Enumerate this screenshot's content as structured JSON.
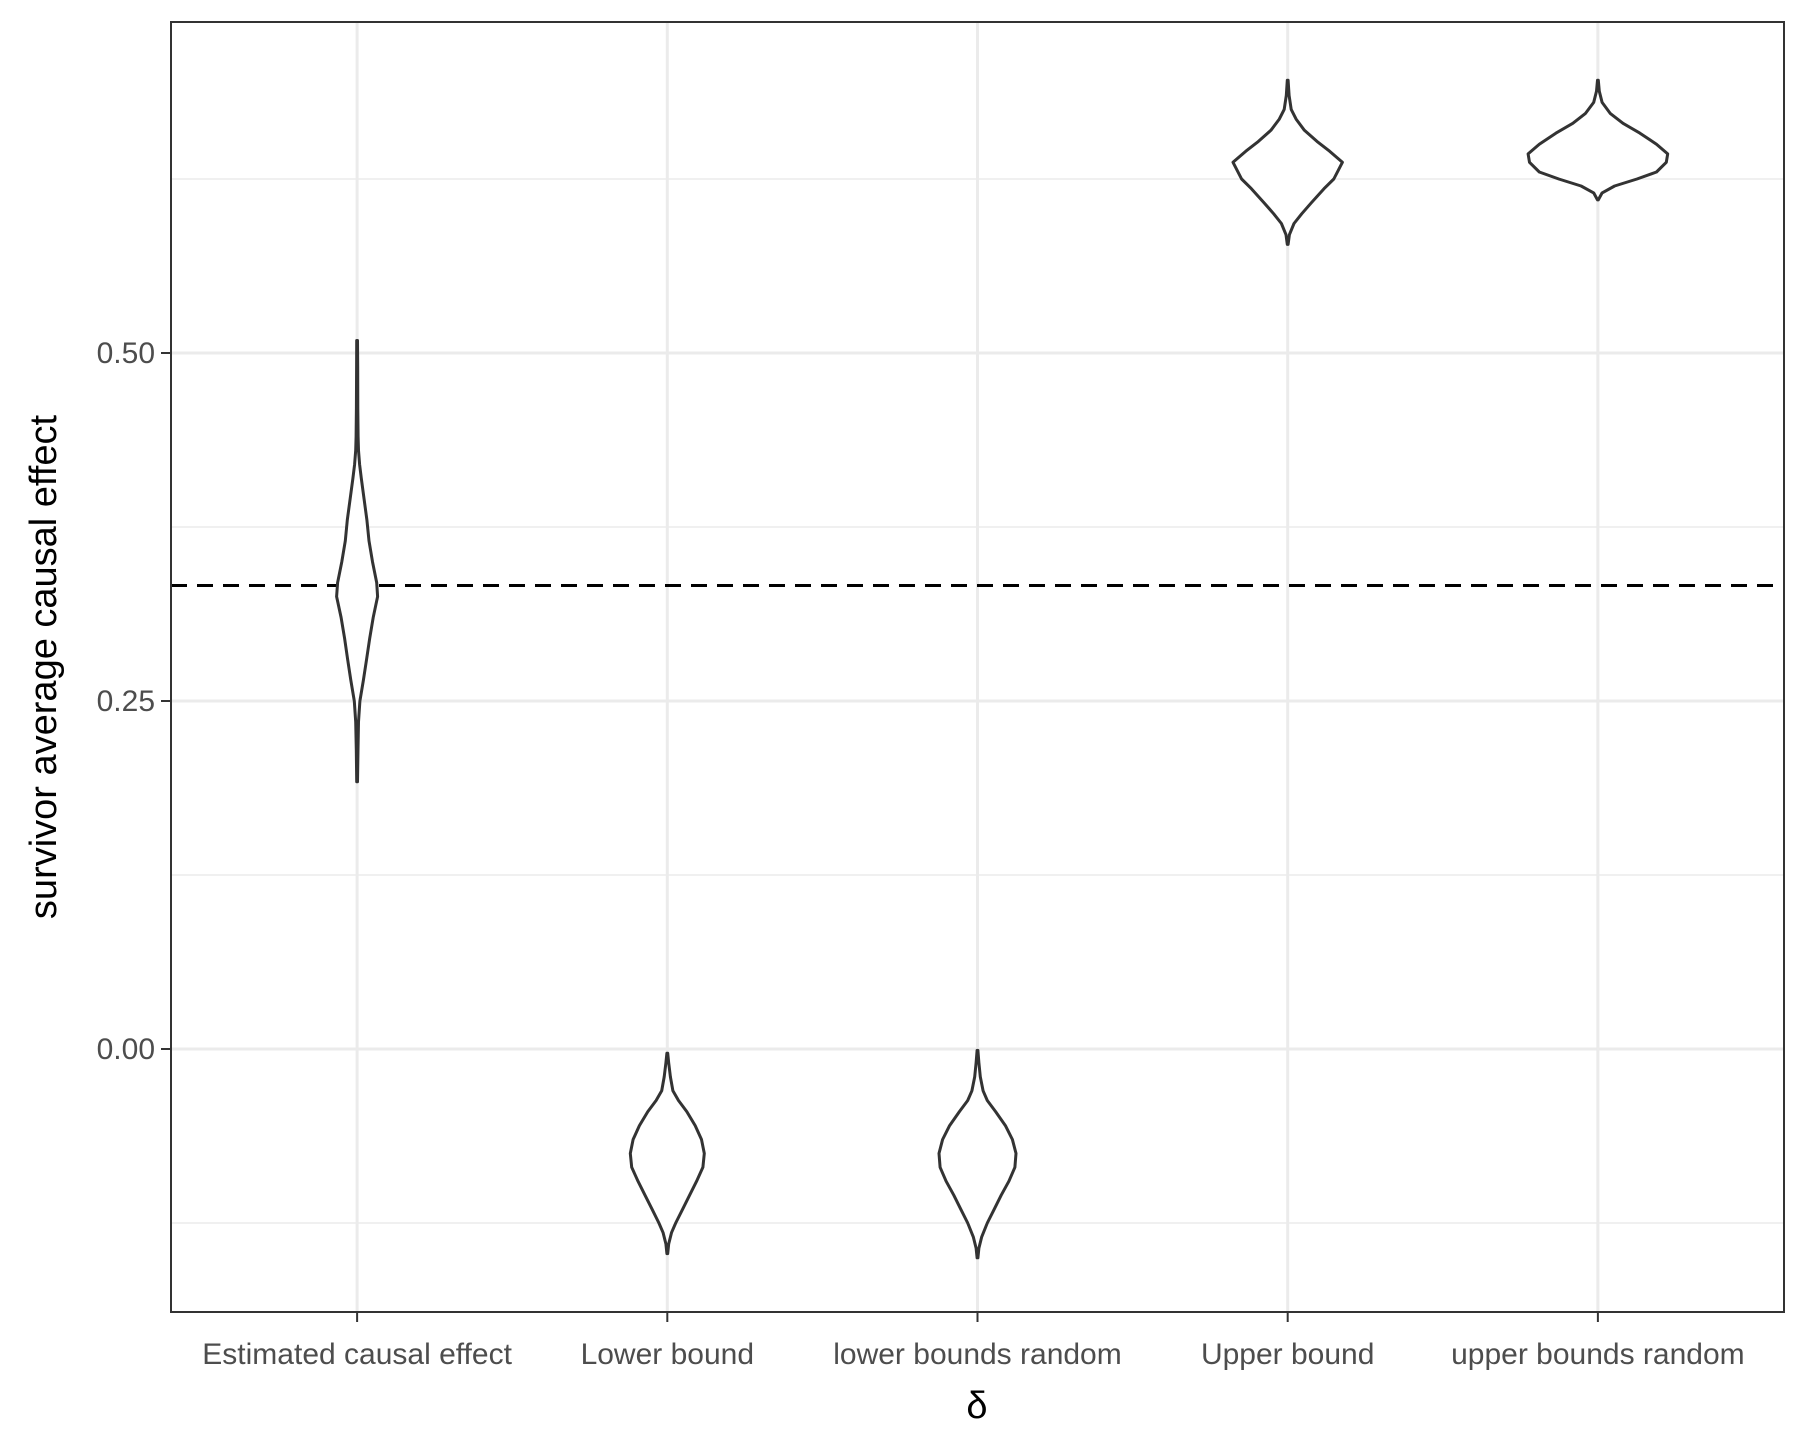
{
  "chart_data": {
    "type": "violin",
    "xlabel": "δ",
    "ylabel": "survivor average causal effect",
    "categories": [
      "Estimated causal effect",
      "Lower bound",
      "lower bounds random",
      "Upper bound",
      "upper bounds random"
    ],
    "ylim": [
      -0.19,
      0.74
    ],
    "yticks": [
      {
        "value": 0.0,
        "label": "0.00"
      },
      {
        "value": 0.25,
        "label": "0.25"
      },
      {
        "value": 0.5,
        "label": "0.50"
      }
    ],
    "y_minor_gridlines": [
      -0.125,
      0.125,
      0.375,
      0.625
    ],
    "reference_line": {
      "value": 0.333,
      "style": "dashed"
    },
    "grid": true,
    "violins": [
      {
        "category": "Estimated causal effect",
        "min": 0.192,
        "max": 0.509,
        "max_halfwidth": 0.147,
        "profile": [
          [
            0.192,
            0.003
          ],
          [
            0.215,
            0.006
          ],
          [
            0.235,
            0.01
          ],
          [
            0.25,
            0.02
          ],
          [
            0.265,
            0.045
          ],
          [
            0.28,
            0.068
          ],
          [
            0.295,
            0.09
          ],
          [
            0.31,
            0.115
          ],
          [
            0.325,
            0.147
          ],
          [
            0.335,
            0.14
          ],
          [
            0.35,
            0.11
          ],
          [
            0.365,
            0.085
          ],
          [
            0.38,
            0.07
          ],
          [
            0.395,
            0.05
          ],
          [
            0.41,
            0.03
          ],
          [
            0.42,
            0.018
          ],
          [
            0.43,
            0.01
          ],
          [
            0.44,
            0.007
          ],
          [
            0.46,
            0.005
          ],
          [
            0.49,
            0.004
          ],
          [
            0.509,
            0.003
          ]
        ]
      },
      {
        "category": "Lower bound",
        "min": -0.147,
        "max": -0.003,
        "max_halfwidth": 0.265,
        "profile": [
          [
            -0.147,
            0.003
          ],
          [
            -0.14,
            0.01
          ],
          [
            -0.132,
            0.03
          ],
          [
            -0.125,
            0.06
          ],
          [
            -0.115,
            0.11
          ],
          [
            -0.105,
            0.16
          ],
          [
            -0.095,
            0.21
          ],
          [
            -0.085,
            0.255
          ],
          [
            -0.075,
            0.265
          ],
          [
            -0.065,
            0.245
          ],
          [
            -0.055,
            0.2
          ],
          [
            -0.045,
            0.14
          ],
          [
            -0.037,
            0.08
          ],
          [
            -0.03,
            0.04
          ],
          [
            -0.02,
            0.022
          ],
          [
            -0.01,
            0.01
          ],
          [
            -0.003,
            0.003
          ]
        ]
      },
      {
        "category": "lower bounds random",
        "min": -0.15,
        "max": -0.001,
        "max_halfwidth": 0.276,
        "profile": [
          [
            -0.15,
            0.003
          ],
          [
            -0.143,
            0.01
          ],
          [
            -0.135,
            0.03
          ],
          [
            -0.125,
            0.07
          ],
          [
            -0.115,
            0.12
          ],
          [
            -0.105,
            0.17
          ],
          [
            -0.095,
            0.225
          ],
          [
            -0.085,
            0.268
          ],
          [
            -0.075,
            0.276
          ],
          [
            -0.065,
            0.25
          ],
          [
            -0.055,
            0.2
          ],
          [
            -0.045,
            0.13
          ],
          [
            -0.037,
            0.07
          ],
          [
            -0.03,
            0.04
          ],
          [
            -0.02,
            0.02
          ],
          [
            -0.01,
            0.01
          ],
          [
            -0.001,
            0.003
          ]
        ]
      },
      {
        "category": "Upper bound",
        "min": 0.578,
        "max": 0.696,
        "max_halfwidth": 0.392,
        "profile": [
          [
            0.578,
            0.003
          ],
          [
            0.585,
            0.012
          ],
          [
            0.593,
            0.045
          ],
          [
            0.6,
            0.1
          ],
          [
            0.608,
            0.17
          ],
          [
            0.618,
            0.26
          ],
          [
            0.625,
            0.33
          ],
          [
            0.637,
            0.392
          ],
          [
            0.645,
            0.3
          ],
          [
            0.652,
            0.21
          ],
          [
            0.66,
            0.12
          ],
          [
            0.668,
            0.06
          ],
          [
            0.675,
            0.025
          ],
          [
            0.685,
            0.01
          ],
          [
            0.696,
            0.003
          ]
        ]
      },
      {
        "category": "upper bounds random",
        "min": 0.61,
        "max": 0.696,
        "max_halfwidth": 0.5,
        "profile": [
          [
            0.61,
            0.003
          ],
          [
            0.615,
            0.03
          ],
          [
            0.62,
            0.12
          ],
          [
            0.625,
            0.28
          ],
          [
            0.63,
            0.42
          ],
          [
            0.637,
            0.49
          ],
          [
            0.643,
            0.5
          ],
          [
            0.65,
            0.42
          ],
          [
            0.658,
            0.3
          ],
          [
            0.665,
            0.18
          ],
          [
            0.672,
            0.09
          ],
          [
            0.68,
            0.03
          ],
          [
            0.688,
            0.01
          ],
          [
            0.696,
            0.003
          ]
        ]
      }
    ]
  }
}
